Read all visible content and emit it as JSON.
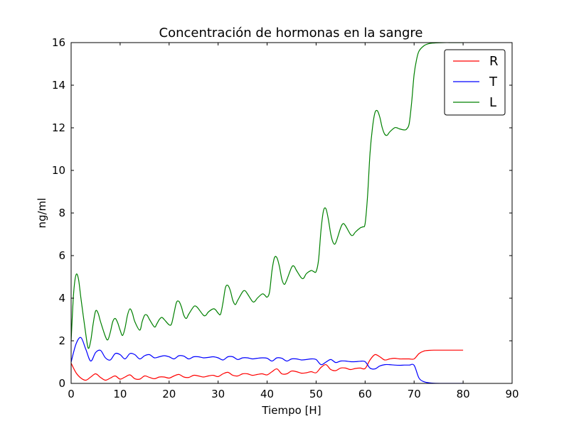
{
  "chart_data": {
    "type": "line",
    "title": "Concentración de hormonas en la sangre",
    "xlabel": "Tiempo [H]",
    "ylabel": "ng/ml",
    "xlim": [
      0,
      90
    ],
    "ylim": [
      0,
      16
    ],
    "xticks": [
      0,
      10,
      20,
      30,
      40,
      50,
      60,
      70,
      80,
      90
    ],
    "yticks": [
      0,
      2,
      4,
      6,
      8,
      10,
      12,
      14,
      16
    ],
    "grid": false,
    "legend_position": "top-right",
    "series": [
      {
        "name": "R",
        "color": "#ff0000",
        "points": [
          [
            0,
            0.95
          ],
          [
            1,
            0.5
          ],
          [
            2,
            0.25
          ],
          [
            3,
            0.15
          ],
          [
            4,
            0.3
          ],
          [
            5,
            0.45
          ],
          [
            6,
            0.28
          ],
          [
            7,
            0.15
          ],
          [
            8,
            0.25
          ],
          [
            9,
            0.35
          ],
          [
            10,
            0.2
          ],
          [
            11,
            0.3
          ],
          [
            12,
            0.4
          ],
          [
            13,
            0.22
          ],
          [
            14,
            0.2
          ],
          [
            15,
            0.35
          ],
          [
            16,
            0.28
          ],
          [
            17,
            0.22
          ],
          [
            18,
            0.3
          ],
          [
            19,
            0.3
          ],
          [
            20,
            0.25
          ],
          [
            21,
            0.35
          ],
          [
            22,
            0.42
          ],
          [
            23,
            0.3
          ],
          [
            24,
            0.28
          ],
          [
            25,
            0.38
          ],
          [
            26,
            0.35
          ],
          [
            27,
            0.3
          ],
          [
            28,
            0.35
          ],
          [
            29,
            0.38
          ],
          [
            30,
            0.32
          ],
          [
            31,
            0.45
          ],
          [
            32,
            0.52
          ],
          [
            33,
            0.38
          ],
          [
            34,
            0.35
          ],
          [
            35,
            0.45
          ],
          [
            36,
            0.45
          ],
          [
            37,
            0.38
          ],
          [
            38,
            0.42
          ],
          [
            39,
            0.45
          ],
          [
            40,
            0.4
          ],
          [
            41,
            0.55
          ],
          [
            42,
            0.68
          ],
          [
            43,
            0.45
          ],
          [
            44,
            0.45
          ],
          [
            45,
            0.58
          ],
          [
            46,
            0.55
          ],
          [
            47,
            0.48
          ],
          [
            48,
            0.5
          ],
          [
            49,
            0.55
          ],
          [
            50,
            0.5
          ],
          [
            51,
            0.75
          ],
          [
            52,
            0.88
          ],
          [
            53,
            0.65
          ],
          [
            54,
            0.6
          ],
          [
            55,
            0.72
          ],
          [
            56,
            0.72
          ],
          [
            57,
            0.65
          ],
          [
            58,
            0.7
          ],
          [
            59,
            0.72
          ],
          [
            60,
            0.7
          ],
          [
            61,
            1.1
          ],
          [
            62,
            1.35
          ],
          [
            63,
            1.25
          ],
          [
            64,
            1.1
          ],
          [
            65,
            1.15
          ],
          [
            66,
            1.18
          ],
          [
            67,
            1.15
          ],
          [
            68,
            1.15
          ],
          [
            69,
            1.15
          ],
          [
            70,
            1.15
          ],
          [
            71,
            1.4
          ],
          [
            72,
            1.52
          ],
          [
            73,
            1.55
          ],
          [
            74,
            1.56
          ],
          [
            76,
            1.56
          ],
          [
            78,
            1.56
          ],
          [
            80,
            1.56
          ]
        ]
      },
      {
        "name": "T",
        "color": "#0000ff",
        "points": [
          [
            0,
            1.0
          ],
          [
            1,
            1.85
          ],
          [
            2,
            2.15
          ],
          [
            3,
            1.6
          ],
          [
            4,
            1.05
          ],
          [
            5,
            1.45
          ],
          [
            6,
            1.55
          ],
          [
            7,
            1.2
          ],
          [
            8,
            1.1
          ],
          [
            9,
            1.4
          ],
          [
            10,
            1.35
          ],
          [
            11,
            1.15
          ],
          [
            12,
            1.4
          ],
          [
            13,
            1.35
          ],
          [
            14,
            1.15
          ],
          [
            15,
            1.3
          ],
          [
            16,
            1.35
          ],
          [
            17,
            1.2
          ],
          [
            18,
            1.25
          ],
          [
            19,
            1.3
          ],
          [
            20,
            1.25
          ],
          [
            21,
            1.15
          ],
          [
            22,
            1.3
          ],
          [
            23,
            1.28
          ],
          [
            24,
            1.15
          ],
          [
            25,
            1.25
          ],
          [
            26,
            1.25
          ],
          [
            27,
            1.2
          ],
          [
            28,
            1.22
          ],
          [
            29,
            1.25
          ],
          [
            30,
            1.2
          ],
          [
            31,
            1.1
          ],
          [
            32,
            1.25
          ],
          [
            33,
            1.25
          ],
          [
            34,
            1.12
          ],
          [
            35,
            1.2
          ],
          [
            36,
            1.2
          ],
          [
            37,
            1.15
          ],
          [
            38,
            1.18
          ],
          [
            39,
            1.2
          ],
          [
            40,
            1.18
          ],
          [
            41,
            1.05
          ],
          [
            42,
            1.2
          ],
          [
            43,
            1.18
          ],
          [
            44,
            1.05
          ],
          [
            45,
            1.15
          ],
          [
            46,
            1.15
          ],
          [
            47,
            1.1
          ],
          [
            48,
            1.12
          ],
          [
            49,
            1.15
          ],
          [
            50,
            1.12
          ],
          [
            51,
            0.88
          ],
          [
            52,
            1.0
          ],
          [
            53,
            1.12
          ],
          [
            54,
            0.98
          ],
          [
            55,
            1.05
          ],
          [
            56,
            1.05
          ],
          [
            57,
            1.02
          ],
          [
            58,
            1.02
          ],
          [
            59,
            1.04
          ],
          [
            60,
            1.02
          ],
          [
            61,
            0.72
          ],
          [
            62,
            0.68
          ],
          [
            63,
            0.82
          ],
          [
            64,
            0.88
          ],
          [
            65,
            0.88
          ],
          [
            66,
            0.86
          ],
          [
            67,
            0.85
          ],
          [
            68,
            0.86
          ],
          [
            69,
            0.86
          ],
          [
            70,
            0.85
          ],
          [
            71,
            0.25
          ],
          [
            72,
            0.08
          ],
          [
            73,
            0.03
          ],
          [
            74,
            0.01
          ],
          [
            76,
            0.0
          ],
          [
            78,
            0.0
          ],
          [
            80,
            0.0
          ]
        ]
      },
      {
        "name": "L",
        "color": "#008000",
        "points": [
          [
            0,
            2.0
          ],
          [
            0.5,
            4.2
          ],
          [
            1,
            5.1
          ],
          [
            1.5,
            4.9
          ],
          [
            2,
            4.0
          ],
          [
            3,
            2.3
          ],
          [
            3.5,
            1.65
          ],
          [
            4,
            2.0
          ],
          [
            4.5,
            2.8
          ],
          [
            5,
            3.4
          ],
          [
            5.5,
            3.3
          ],
          [
            6,
            2.9
          ],
          [
            7,
            2.2
          ],
          [
            7.5,
            2.05
          ],
          [
            8,
            2.4
          ],
          [
            8.5,
            2.9
          ],
          [
            9,
            3.05
          ],
          [
            9.5,
            2.85
          ],
          [
            10,
            2.5
          ],
          [
            10.5,
            2.25
          ],
          [
            11,
            2.6
          ],
          [
            11.5,
            3.2
          ],
          [
            12,
            3.5
          ],
          [
            12.5,
            3.3
          ],
          [
            13,
            2.9
          ],
          [
            14,
            2.5
          ],
          [
            14.5,
            2.9
          ],
          [
            15,
            3.2
          ],
          [
            15.5,
            3.2
          ],
          [
            16,
            3.0
          ],
          [
            17,
            2.65
          ],
          [
            17.5,
            2.8
          ],
          [
            18,
            3.0
          ],
          [
            18.5,
            3.1
          ],
          [
            19,
            3.0
          ],
          [
            20,
            2.75
          ],
          [
            20.5,
            2.8
          ],
          [
            21,
            3.3
          ],
          [
            21.5,
            3.8
          ],
          [
            22,
            3.85
          ],
          [
            22.5,
            3.6
          ],
          [
            23,
            3.2
          ],
          [
            23.5,
            3.05
          ],
          [
            24,
            3.25
          ],
          [
            25,
            3.6
          ],
          [
            25.5,
            3.62
          ],
          [
            26,
            3.5
          ],
          [
            27,
            3.2
          ],
          [
            27.5,
            3.2
          ],
          [
            28,
            3.35
          ],
          [
            29,
            3.5
          ],
          [
            29.5,
            3.45
          ],
          [
            30,
            3.3
          ],
          [
            30.5,
            3.25
          ],
          [
            31,
            3.8
          ],
          [
            31.5,
            4.5
          ],
          [
            32,
            4.6
          ],
          [
            32.5,
            4.35
          ],
          [
            33,
            3.9
          ],
          [
            33.5,
            3.7
          ],
          [
            34,
            3.9
          ],
          [
            35,
            4.3
          ],
          [
            35.5,
            4.35
          ],
          [
            36,
            4.2
          ],
          [
            37,
            3.85
          ],
          [
            37.5,
            3.85
          ],
          [
            38,
            4.0
          ],
          [
            39,
            4.2
          ],
          [
            39.5,
            4.15
          ],
          [
            40,
            4.05
          ],
          [
            40.5,
            4.3
          ],
          [
            41,
            5.3
          ],
          [
            41.5,
            5.9
          ],
          [
            42,
            5.9
          ],
          [
            42.5,
            5.5
          ],
          [
            43,
            4.9
          ],
          [
            43.5,
            4.65
          ],
          [
            44,
            4.85
          ],
          [
            45,
            5.45
          ],
          [
            45.5,
            5.5
          ],
          [
            46,
            5.3
          ],
          [
            47,
            4.95
          ],
          [
            47.5,
            4.95
          ],
          [
            48,
            5.15
          ],
          [
            49,
            5.3
          ],
          [
            49.5,
            5.25
          ],
          [
            50,
            5.25
          ],
          [
            50.5,
            5.8
          ],
          [
            51,
            7.2
          ],
          [
            51.5,
            8.1
          ],
          [
            52,
            8.2
          ],
          [
            52.5,
            7.7
          ],
          [
            53,
            7.0
          ],
          [
            53.5,
            6.6
          ],
          [
            54,
            6.6
          ],
          [
            55,
            7.3
          ],
          [
            55.5,
            7.5
          ],
          [
            56,
            7.4
          ],
          [
            57,
            7.0
          ],
          [
            57.5,
            6.95
          ],
          [
            58,
            7.1
          ],
          [
            59,
            7.3
          ],
          [
            59.5,
            7.35
          ],
          [
            60,
            7.5
          ],
          [
            60.5,
            8.8
          ],
          [
            61,
            10.8
          ],
          [
            61.5,
            12.0
          ],
          [
            62,
            12.7
          ],
          [
            62.5,
            12.8
          ],
          [
            63,
            12.5
          ],
          [
            63.5,
            12.0
          ],
          [
            64,
            11.7
          ],
          [
            64.5,
            11.65
          ],
          [
            65,
            11.8
          ],
          [
            66,
            12.0
          ],
          [
            66.5,
            12.0
          ],
          [
            67,
            11.95
          ],
          [
            68,
            11.9
          ],
          [
            68.5,
            11.95
          ],
          [
            69,
            12.2
          ],
          [
            69.5,
            13.2
          ],
          [
            70,
            14.5
          ],
          [
            70.5,
            15.2
          ],
          [
            71,
            15.6
          ],
          [
            72,
            15.85
          ],
          [
            73,
            15.95
          ],
          [
            74,
            15.98
          ],
          [
            76,
            16.0
          ],
          [
            78,
            16.0
          ],
          [
            80,
            16.0
          ]
        ]
      }
    ]
  }
}
